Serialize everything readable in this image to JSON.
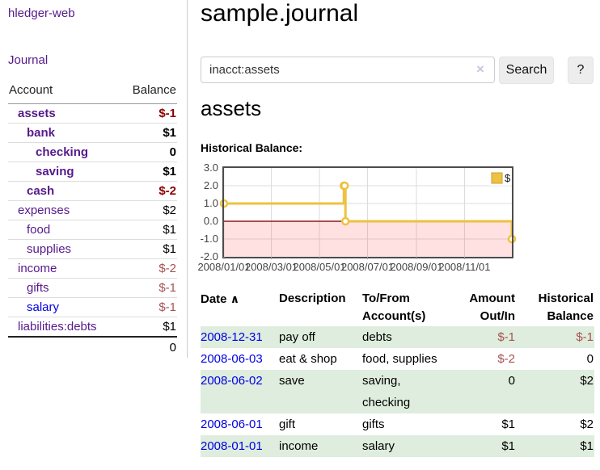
{
  "app": {
    "brand": "hledger-web",
    "nav": {
      "journal": "Journal"
    }
  },
  "colors": {
    "link_purple": "#551a8b",
    "link_blue": "#0000e6",
    "negative_bold": "#8b0000",
    "negative_muted": "#a85252",
    "row_green": "#deeddd",
    "chart_line": "#edc240",
    "chart_zero_line": "#8b1a1a"
  },
  "sidebar": {
    "headers": {
      "account": "Account",
      "balance": "Balance"
    },
    "accounts": [
      {
        "name": "assets",
        "indent": 1,
        "bold": true,
        "balance": "$-1",
        "negative": true,
        "blue": false
      },
      {
        "name": "bank",
        "indent": 2,
        "bold": true,
        "balance": "$1",
        "negative": false,
        "blue": false
      },
      {
        "name": "checking",
        "indent": 3,
        "bold": true,
        "balance": "0",
        "negative": false,
        "blue": false
      },
      {
        "name": "saving",
        "indent": 3,
        "bold": true,
        "balance": "$1",
        "negative": false,
        "blue": false
      },
      {
        "name": "cash",
        "indent": 2,
        "bold": true,
        "balance": "$-2",
        "negative": true,
        "blue": false
      },
      {
        "name": "expenses",
        "indent": 1,
        "bold": false,
        "balance": "$2",
        "negative": false,
        "blue": false
      },
      {
        "name": "food",
        "indent": 2,
        "bold": false,
        "balance": "$1",
        "negative": false,
        "blue": false
      },
      {
        "name": "supplies",
        "indent": 2,
        "bold": false,
        "balance": "$1",
        "negative": false,
        "blue": false
      },
      {
        "name": "income",
        "indent": 1,
        "bold": false,
        "balance": "$-2",
        "negative": true,
        "blue": false
      },
      {
        "name": "gifts",
        "indent": 2,
        "bold": false,
        "balance": "$-1",
        "negative": true,
        "blue": false
      },
      {
        "name": "salary",
        "indent": 2,
        "bold": false,
        "balance": "$-1",
        "negative": true,
        "blue": true
      },
      {
        "name": "liabilities:debts",
        "indent": 1,
        "bold": false,
        "balance": "$1",
        "negative": false,
        "blue": false
      }
    ],
    "total": "0"
  },
  "main": {
    "title": "sample.journal",
    "search": {
      "value": "inacct:assets",
      "clear_icon": "×",
      "button": "Search",
      "help_button": "?"
    },
    "account_heading": "assets",
    "chart_label": "Historical Balance:"
  },
  "register": {
    "headers": {
      "date": "Date",
      "sort_indicator": "∧",
      "description": "Description",
      "accounts": "To/From Account(s)",
      "amount": "Amount Out/In",
      "balance": "Historical Balance"
    },
    "rows": [
      {
        "date": "2008-12-31",
        "description": "pay off",
        "accounts": "debts",
        "amount": "$-1",
        "amount_negative": true,
        "balance": "$-1",
        "balance_negative": true,
        "shaded": true
      },
      {
        "date": "2008-06-03",
        "description": "eat & shop",
        "accounts": "food, supplies",
        "amount": "$-2",
        "amount_negative": true,
        "balance": "0",
        "balance_negative": false,
        "shaded": false
      },
      {
        "date": "2008-06-02",
        "description": "save",
        "accounts": "saving, checking",
        "amount": "0",
        "amount_negative": false,
        "balance": "$2",
        "balance_negative": false,
        "shaded": true
      },
      {
        "date": "2008-06-01",
        "description": "gift",
        "accounts": "gifts",
        "amount": "$1",
        "amount_negative": false,
        "balance": "$2",
        "balance_negative": false,
        "shaded": false
      },
      {
        "date": "2008-01-01",
        "description": "income",
        "accounts": "salary",
        "amount": "$1",
        "amount_negative": false,
        "balance": "$1",
        "balance_negative": false,
        "shaded": true
      }
    ]
  },
  "chart_data": {
    "type": "line",
    "title": "Historical Balance",
    "step": true,
    "series": [
      {
        "name": "$",
        "color": "#edc240",
        "points": [
          [
            "2008-01-01",
            1
          ],
          [
            "2008-06-01",
            2
          ],
          [
            "2008-06-02",
            2
          ],
          [
            "2008-06-03",
            0
          ],
          [
            "2008-12-31",
            -1
          ]
        ]
      }
    ],
    "xlim": [
      "2008-01-01",
      "2008-12-31"
    ],
    "ylim": [
      -2,
      3
    ],
    "yticks": [
      3,
      2,
      1,
      0,
      -1,
      -2
    ],
    "xticks": [
      {
        "label": "2008/01/01",
        "date": "2008-01-01"
      },
      {
        "label": "2008/03/01",
        "date": "2008-03-01"
      },
      {
        "label": "2008/05/01",
        "date": "2008-05-01"
      },
      {
        "label": "2008/07/01",
        "date": "2008-07-01"
      },
      {
        "label": "2008/09/01",
        "date": "2008-09-01"
      },
      {
        "label": "2008/11/01",
        "date": "2008-11-01"
      }
    ],
    "legend": {
      "position": "top-right",
      "label": "$"
    },
    "grid": true,
    "below_zero_shading": true,
    "zero_line": true
  }
}
